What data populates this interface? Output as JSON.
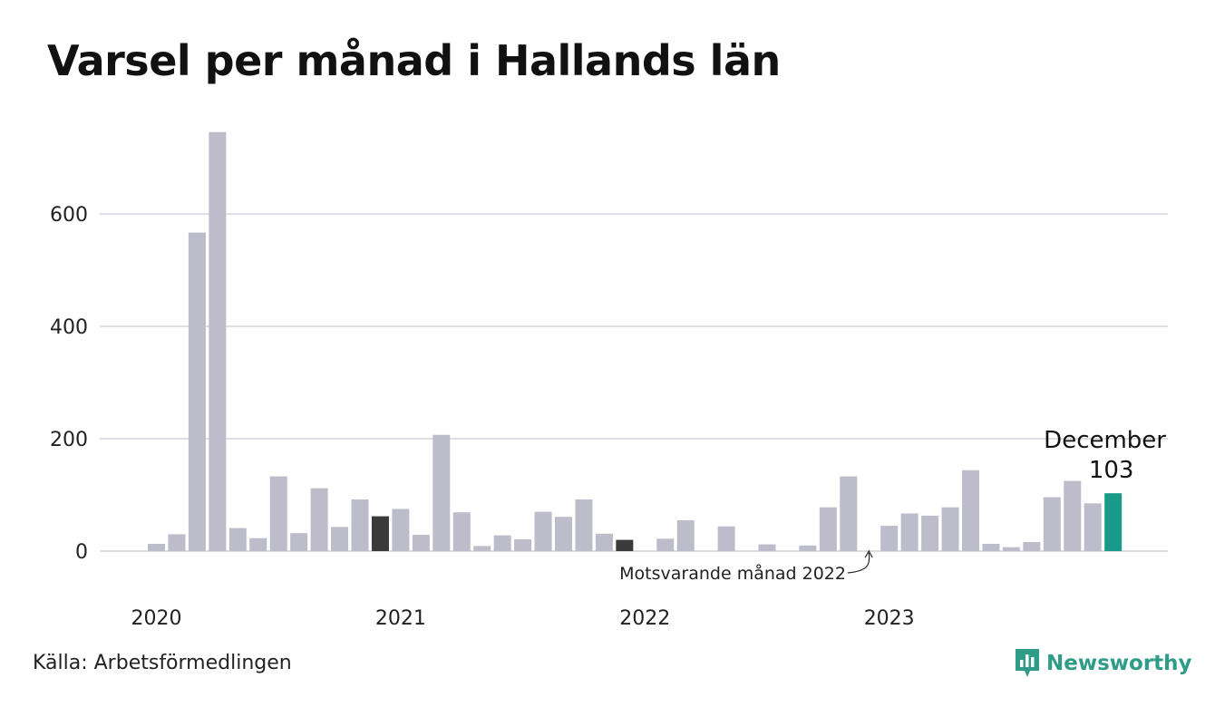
{
  "title": "Varsel per månad i Hallands län",
  "source": "Källa: Arbetsförmedlingen",
  "brand": "Newsworthy",
  "colors": {
    "bar": "#bdbccb",
    "previous": "#3a3a3a",
    "highlight": "#1a9a89",
    "grid": "#dddde3",
    "brand": "#2e9c86"
  },
  "chart_data": {
    "type": "bar",
    "title": "Varsel per månad i Hallands län",
    "xlabel": "",
    "ylabel": "",
    "ylim": [
      0,
      760
    ],
    "yticks": [
      0,
      200,
      400,
      600
    ],
    "grid": true,
    "legend": "none",
    "year_labels": [
      {
        "label": "2020",
        "index": 0
      },
      {
        "label": "2021",
        "index": 12
      },
      {
        "label": "2022",
        "index": 24
      },
      {
        "label": "2023",
        "index": 36
      }
    ],
    "categories": [
      "2020-01",
      "2020-02",
      "2020-03",
      "2020-04",
      "2020-05",
      "2020-06",
      "2020-07",
      "2020-08",
      "2020-09",
      "2020-10",
      "2020-11",
      "2020-12",
      "2021-01",
      "2021-02",
      "2021-03",
      "2021-04",
      "2021-05",
      "2021-06",
      "2021-07",
      "2021-08",
      "2021-09",
      "2021-10",
      "2021-11",
      "2021-12",
      "2022-01",
      "2022-02",
      "2022-03",
      "2022-04",
      "2022-05",
      "2022-06",
      "2022-07",
      "2022-08",
      "2022-09",
      "2022-10",
      "2022-11",
      "2022-12",
      "2023-01",
      "2023-02",
      "2023-03",
      "2023-04",
      "2023-05",
      "2023-06",
      "2023-07",
      "2023-08",
      "2023-09",
      "2023-10",
      "2023-11",
      "2023-12"
    ],
    "values": [
      13,
      30,
      567,
      746,
      41,
      23,
      133,
      32,
      112,
      43,
      92,
      62,
      75,
      29,
      207,
      69,
      9,
      28,
      21,
      70,
      61,
      92,
      31,
      20,
      0,
      22,
      55,
      0,
      44,
      0,
      12,
      0,
      10,
      78,
      133,
      0,
      45,
      67,
      63,
      78,
      144,
      13,
      7,
      16,
      96,
      125,
      85,
      103
    ],
    "previous_year_index": [
      11,
      23
    ],
    "highlight_index": 47,
    "highlight_label": "December",
    "highlight_value_label": "103",
    "annotation": {
      "text": "Motsvarande månad 2022",
      "index": 35
    }
  }
}
